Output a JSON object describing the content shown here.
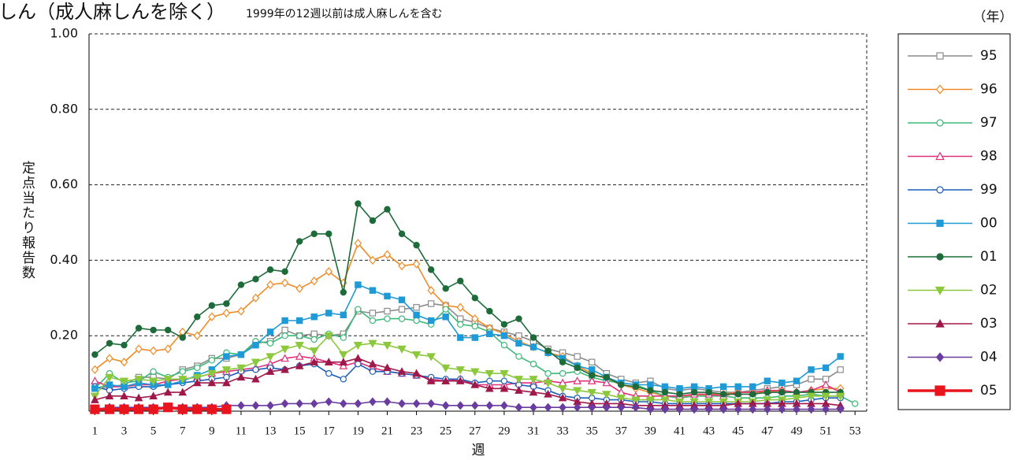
{
  "chart_data": {
    "type": "line",
    "title": "しん（成人麻しんを除く）",
    "subtitle": "1999年の12週以前は成人麻しんを含む",
    "y_label": "定点当たり報告数",
    "x_label": "週",
    "legend_title": "（年）",
    "legend": "right",
    "grid": true,
    "x": [
      1,
      2,
      3,
      4,
      5,
      6,
      7,
      8,
      9,
      10,
      11,
      12,
      13,
      14,
      15,
      16,
      17,
      18,
      19,
      20,
      21,
      22,
      23,
      24,
      25,
      26,
      27,
      28,
      29,
      30,
      31,
      32,
      33,
      34,
      35,
      36,
      37,
      38,
      39,
      40,
      41,
      42,
      43,
      44,
      45,
      46,
      47,
      48,
      49,
      50,
      51,
      52,
      53
    ],
    "xlim": [
      0.6,
      53.8
    ],
    "xticks": [
      1,
      3,
      5,
      7,
      9,
      11,
      13,
      15,
      17,
      19,
      21,
      23,
      25,
      27,
      29,
      31,
      33,
      35,
      37,
      39,
      41,
      43,
      45,
      47,
      49,
      51,
      53
    ],
    "ylim": [
      0,
      1
    ],
    "yticks": [
      {
        "value": 0.2,
        "label": "0.20"
      },
      {
        "value": 0.4,
        "label": "0.40"
      },
      {
        "value": 0.6,
        "label": "0.60"
      },
      {
        "value": 0.8,
        "label": "0.80"
      },
      {
        "value": 1,
        "label": "1.00"
      }
    ],
    "series": [
      {
        "name": "95",
        "color": "#8c8c8c",
        "marker": "square-open",
        "values": [
          0.06,
          0.065,
          0.07,
          0.09,
          0.09,
          0.085,
          0.11,
          0.12,
          0.14,
          0.14,
          0.15,
          0.18,
          0.185,
          0.215,
          0.2,
          0.205,
          0.2,
          0.205,
          0.265,
          0.26,
          0.265,
          0.27,
          0.275,
          0.285,
          0.28,
          0.245,
          0.235,
          0.22,
          0.21,
          0.2,
          0.185,
          0.165,
          0.155,
          0.145,
          0.13,
          0.1,
          0.085,
          0.075,
          0.08,
          0.06,
          0.055,
          0.06,
          0.055,
          0.05,
          0.05,
          0.055,
          0.06,
          0.065,
          0.07,
          0.085,
          0.085,
          0.11,
          null
        ]
      },
      {
        "name": "96",
        "color": "#f08a24",
        "marker": "diamond-open",
        "values": [
          0.11,
          0.14,
          0.13,
          0.165,
          0.16,
          0.165,
          0.21,
          0.2,
          0.25,
          0.26,
          0.265,
          0.3,
          0.335,
          0.34,
          0.325,
          0.345,
          0.37,
          0.34,
          0.445,
          0.4,
          0.415,
          0.385,
          0.39,
          0.32,
          0.28,
          0.275,
          0.245,
          0.22,
          0.205,
          0.185,
          0.17,
          0.155,
          0.145,
          0.12,
          0.1,
          0.085,
          0.07,
          0.06,
          0.05,
          0.04,
          0.04,
          0.04,
          0.045,
          0.045,
          0.05,
          0.05,
          0.05,
          0.055,
          0.05,
          0.055,
          0.06,
          0.06,
          null
        ]
      },
      {
        "name": "97",
        "color": "#3cb878",
        "marker": "circle-open",
        "values": [
          0.06,
          0.1,
          0.075,
          0.08,
          0.105,
          0.09,
          0.105,
          0.115,
          0.135,
          0.155,
          0.15,
          0.185,
          0.18,
          0.2,
          0.2,
          0.19,
          0.205,
          0.195,
          0.27,
          0.24,
          0.245,
          0.245,
          0.24,
          0.23,
          0.27,
          0.23,
          0.225,
          0.21,
          0.175,
          0.145,
          0.125,
          0.1,
          0.1,
          0.105,
          0.09,
          0.08,
          0.075,
          0.07,
          0.055,
          0.04,
          0.035,
          0.04,
          0.04,
          0.04,
          0.035,
          0.035,
          0.035,
          0.04,
          0.04,
          0.045,
          0.04,
          0.04,
          0.02
        ]
      },
      {
        "name": "98",
        "color": "#e0307a",
        "marker": "triangle-open",
        "values": [
          0.08,
          0.065,
          0.065,
          0.07,
          0.07,
          0.08,
          0.085,
          0.09,
          0.1,
          0.105,
          0.11,
          0.115,
          0.125,
          0.14,
          0.145,
          0.14,
          0.13,
          0.12,
          0.13,
          0.115,
          0.105,
          0.1,
          0.095,
          0.085,
          0.08,
          0.085,
          0.07,
          0.07,
          0.07,
          0.075,
          0.075,
          0.08,
          0.075,
          0.08,
          0.08,
          0.075,
          0.05,
          0.04,
          0.04,
          0.04,
          0.04,
          0.045,
          0.045,
          0.04,
          0.05,
          0.05,
          0.055,
          0.055,
          0.05,
          0.055,
          0.07,
          0.05,
          null
        ]
      },
      {
        "name": "99",
        "color": "#1f5fb8",
        "marker": "circle-open",
        "values": [
          0.065,
          0.055,
          0.06,
          0.065,
          0.065,
          0.07,
          0.075,
          0.08,
          0.085,
          0.09,
          0.105,
          0.11,
          0.115,
          0.11,
          0.12,
          0.125,
          0.1,
          0.085,
          0.125,
          0.105,
          0.105,
          0.1,
          0.095,
          0.09,
          0.085,
          0.085,
          0.075,
          0.08,
          0.08,
          0.07,
          0.065,
          0.055,
          0.04,
          0.035,
          0.035,
          0.03,
          0.03,
          0.025,
          0.025,
          0.02,
          0.02,
          0.02,
          0.02,
          0.02,
          0.02,
          0.02,
          0.02,
          0.025,
          0.025,
          0.03,
          0.035,
          0.035,
          null
        ]
      },
      {
        "name": "00",
        "color": "#1e9ad6",
        "marker": "square",
        "values": [
          0.06,
          0.07,
          0.065,
          0.075,
          0.07,
          0.07,
          0.08,
          0.095,
          0.11,
          0.145,
          0.15,
          0.175,
          0.21,
          0.24,
          0.24,
          0.25,
          0.26,
          0.255,
          0.335,
          0.32,
          0.305,
          0.295,
          0.255,
          0.24,
          0.25,
          0.195,
          0.195,
          0.205,
          0.2,
          0.18,
          0.17,
          0.155,
          0.14,
          0.12,
          0.11,
          0.09,
          0.075,
          0.07,
          0.07,
          0.065,
          0.06,
          0.065,
          0.06,
          0.065,
          0.065,
          0.065,
          0.08,
          0.075,
          0.08,
          0.11,
          0.115,
          0.145,
          null
        ]
      },
      {
        "name": "01",
        "color": "#1e6b3a",
        "marker": "circle",
        "values": [
          0.15,
          0.18,
          0.175,
          0.22,
          0.215,
          0.215,
          0.195,
          0.25,
          0.28,
          0.285,
          0.335,
          0.35,
          0.375,
          0.37,
          0.45,
          0.47,
          0.47,
          0.315,
          0.55,
          0.505,
          0.535,
          0.47,
          0.44,
          0.375,
          0.325,
          0.345,
          0.3,
          0.265,
          0.23,
          0.245,
          0.195,
          0.16,
          0.13,
          0.115,
          0.095,
          0.09,
          0.07,
          0.065,
          0.055,
          0.05,
          0.045,
          0.05,
          0.05,
          0.045,
          0.045,
          0.045,
          0.05,
          0.05,
          0.05,
          0.05,
          0.05,
          0.05,
          null
        ]
      },
      {
        "name": "02",
        "color": "#8cc83c",
        "marker": "triangle-down",
        "values": [
          0.04,
          0.09,
          0.08,
          0.085,
          0.08,
          0.085,
          0.085,
          0.09,
          0.1,
          0.11,
          0.115,
          0.13,
          0.145,
          0.165,
          0.175,
          0.16,
          0.2,
          0.15,
          0.175,
          0.18,
          0.175,
          0.165,
          0.15,
          0.145,
          0.115,
          0.11,
          0.105,
          0.1,
          0.1,
          0.085,
          0.085,
          0.075,
          0.06,
          0.055,
          0.05,
          0.045,
          0.035,
          0.03,
          0.03,
          0.03,
          0.025,
          0.025,
          0.025,
          0.025,
          0.025,
          0.025,
          0.03,
          0.03,
          0.035,
          0.04,
          0.04,
          0.04,
          null
        ]
      },
      {
        "name": "03",
        "color": "#a0184a",
        "marker": "triangle",
        "values": [
          0.03,
          0.04,
          0.04,
          0.035,
          0.04,
          0.05,
          0.05,
          0.075,
          0.075,
          0.075,
          0.09,
          0.085,
          0.105,
          0.11,
          0.12,
          0.13,
          0.13,
          0.13,
          0.14,
          0.125,
          0.115,
          0.105,
          0.1,
          0.08,
          0.08,
          0.08,
          0.07,
          0.06,
          0.06,
          0.055,
          0.05,
          0.045,
          0.035,
          0.025,
          0.02,
          0.02,
          0.02,
          0.015,
          0.015,
          0.015,
          0.015,
          0.015,
          0.015,
          0.015,
          0.02,
          0.02,
          0.02,
          0.02,
          0.02,
          0.02,
          0.02,
          0.015,
          null
        ]
      },
      {
        "name": "04",
        "color": "#6a3ca0",
        "marker": "diamond",
        "values": [
          0.005,
          0.01,
          0.01,
          0.01,
          0.01,
          0.01,
          0.01,
          0.01,
          0.01,
          0.015,
          0.015,
          0.015,
          0.015,
          0.02,
          0.02,
          0.02,
          0.025,
          0.02,
          0.02,
          0.025,
          0.025,
          0.02,
          0.02,
          0.02,
          0.015,
          0.015,
          0.015,
          0.015,
          0.015,
          0.01,
          0.01,
          0.01,
          0.01,
          0.01,
          0.01,
          0.01,
          0.01,
          0.01,
          0.005,
          0.005,
          0.005,
          0.005,
          0.005,
          0.005,
          0.005,
          0.005,
          0.005,
          0.005,
          0.005,
          0.005,
          0.005,
          0.005,
          null
        ]
      },
      {
        "name": "05",
        "color": "#e8141e",
        "marker": "square",
        "thick": true,
        "values": [
          0.005,
          0.005,
          0.005,
          0.005,
          0.005,
          0.01,
          0.005,
          0.005,
          0.005,
          0.005,
          null,
          null,
          null,
          null,
          null,
          null,
          null,
          null,
          null,
          null,
          null,
          null,
          null,
          null,
          null,
          null,
          null,
          null,
          null,
          null,
          null,
          null,
          null,
          null,
          null,
          null,
          null,
          null,
          null,
          null,
          null,
          null,
          null,
          null,
          null,
          null,
          null,
          null,
          null,
          null,
          null,
          null,
          null
        ]
      }
    ]
  }
}
